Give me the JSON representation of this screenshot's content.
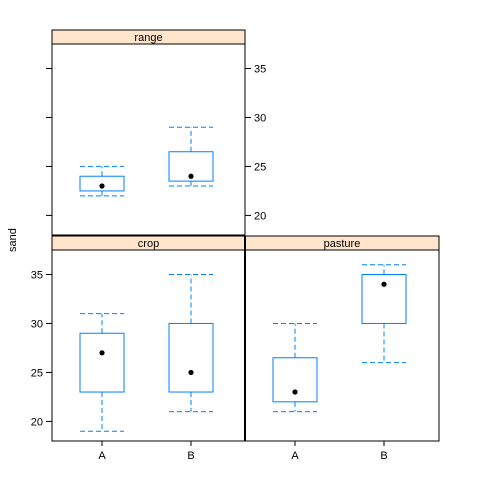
{
  "chart_data": {
    "type": "box",
    "ylabel": "sand",
    "xlabel": "",
    "categories": [
      "A",
      "B"
    ],
    "y_ticks": [
      20,
      25,
      30,
      35
    ],
    "ylim": [
      18,
      37.5
    ],
    "colors": {
      "strip": "#ffe5cc",
      "box": "#0080ff",
      "median_dot": "#000000",
      "frame": "#000000"
    },
    "panels": [
      {
        "name": "range",
        "boxes": [
          {
            "category": "A",
            "whisker_low": 22,
            "q1": 22.5,
            "median": 23,
            "q3": 24,
            "whisker_high": 25
          },
          {
            "category": "B",
            "whisker_low": 23,
            "q1": 23.5,
            "median": 24,
            "q3": 26.5,
            "whisker_high": 29
          }
        ]
      },
      {
        "name": "crop",
        "boxes": [
          {
            "category": "A",
            "whisker_low": 19,
            "q1": 23,
            "median": 27,
            "q3": 29,
            "whisker_high": 31
          },
          {
            "category": "B",
            "whisker_low": 21,
            "q1": 23,
            "median": 25,
            "q3": 30,
            "whisker_high": 35
          }
        ]
      },
      {
        "name": "pasture",
        "boxes": [
          {
            "category": "A",
            "whisker_low": 21,
            "q1": 22,
            "median": 23,
            "q3": 26.5,
            "whisker_high": 30
          },
          {
            "category": "B",
            "whisker_low": 26,
            "q1": 30,
            "median": 34,
            "q3": 35,
            "whisker_high": 36
          }
        ]
      }
    ]
  }
}
